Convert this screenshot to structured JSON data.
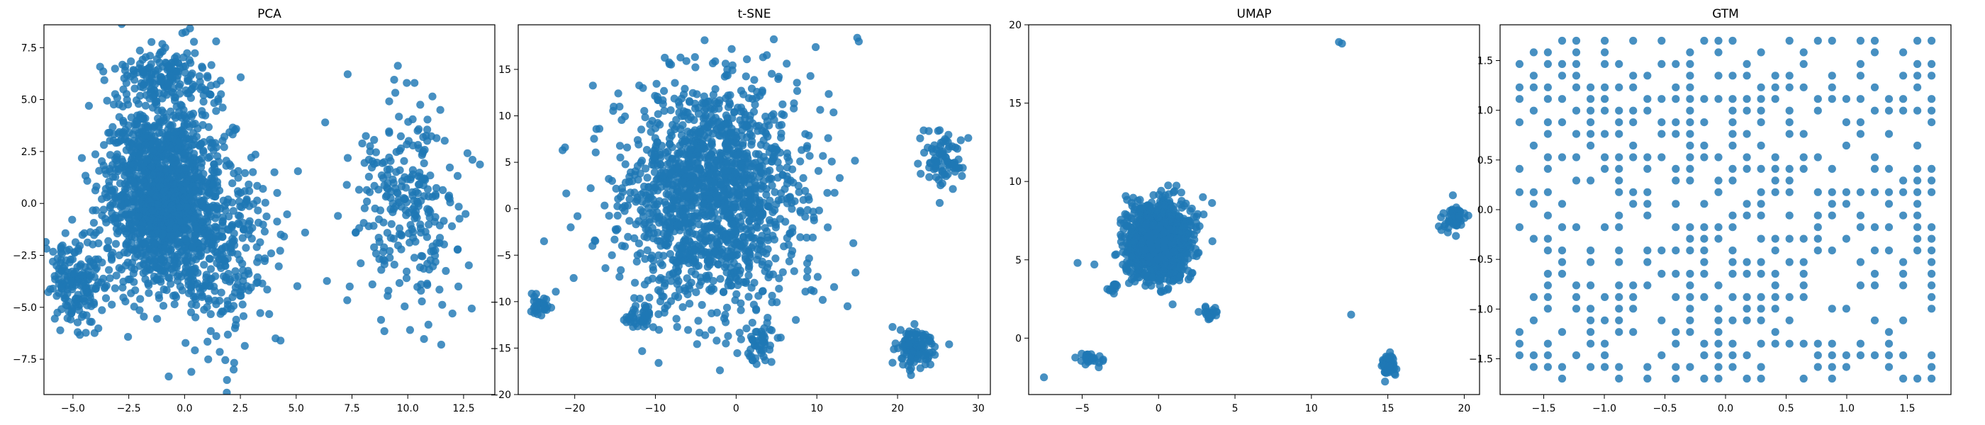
{
  "chart_data": [
    {
      "type": "scatter",
      "title": "PCA",
      "xlim": [
        -6.3,
        13.9
      ],
      "ylim": [
        -9.2,
        8.6
      ],
      "xticks": [
        -5.0,
        -2.5,
        0.0,
        2.5,
        5.0,
        7.5,
        10.0,
        12.5
      ],
      "yticks": [
        -7.5,
        -5.0,
        -2.5,
        0.0,
        2.5,
        5.0,
        7.5
      ],
      "xtick_labels": [
        "−5.0",
        "−2.5",
        "0.0",
        "2.5",
        "5.0",
        "7.5",
        "10.0",
        "12.5"
      ],
      "ytick_labels": [
        "−7.5",
        "−5.0",
        "−2.5",
        "0.0",
        "2.5",
        "5.0",
        "7.5"
      ],
      "color": "#1f77b4",
      "clusters": [
        {
          "cx": -1.0,
          "cy": 0.5,
          "sx": 1.3,
          "sy": 2.3,
          "n": 1400
        },
        {
          "cx": -4.8,
          "cy": -3.8,
          "sx": 0.7,
          "sy": 1.1,
          "n": 180
        },
        {
          "cx": 1.5,
          "cy": -2.5,
          "sx": 1.4,
          "sy": 2.3,
          "n": 300
        },
        {
          "cx": -1.2,
          "cy": 6.0,
          "sx": 1.1,
          "sy": 0.8,
          "n": 140
        },
        {
          "cx": 10.0,
          "cy": 0.0,
          "sx": 1.2,
          "sy": 2.5,
          "n": 260
        }
      ],
      "outliers": [
        [
          -0.1,
          8.2
        ],
        [
          1.9,
          -8.5
        ],
        [
          12.9,
          2.1
        ],
        [
          11.5,
          -6.8
        ],
        [
          12.0,
          -5.3
        ],
        [
          6.3,
          3.9
        ],
        [
          7.4,
          -4.0
        ],
        [
          4.3,
          -6.6
        ],
        [
          -5.9,
          -2.8
        ],
        [
          5.4,
          -1.4
        ],
        [
          2.2,
          -8.0
        ],
        [
          10.3,
          5.8
        ]
      ]
    },
    {
      "type": "scatter",
      "title": "t-SNE",
      "xlim": [
        -27.0,
        31.5
      ],
      "ylim": [
        -20.0,
        19.8
      ],
      "xticks": [
        -20,
        -10,
        0,
        10,
        20,
        30
      ],
      "yticks": [
        -20,
        -15,
        -10,
        -5,
        0,
        5,
        10,
        15
      ],
      "xtick_labels": [
        "−20",
        "−10",
        "0",
        "10",
        "20",
        "30"
      ],
      "ytick_labels": [
        "−20",
        "−15",
        "−10",
        "−5",
        "0",
        "5",
        "10",
        "15"
      ],
      "color": "#1f77b4",
      "clusters": [
        {
          "cx": -3.0,
          "cy": 1.5,
          "sx": 5.5,
          "sy": 6.3,
          "n": 1500
        },
        {
          "cx": -24.0,
          "cy": -10.5,
          "sx": 0.9,
          "sy": 0.8,
          "n": 30
        },
        {
          "cx": 25.5,
          "cy": 5.5,
          "sx": 1.2,
          "sy": 1.6,
          "n": 80
        },
        {
          "cx": 22.0,
          "cy": -15.0,
          "sx": 1.2,
          "sy": 1.1,
          "n": 110
        },
        {
          "cx": 3.0,
          "cy": -14.8,
          "sx": 0.9,
          "sy": 1.0,
          "n": 40
        },
        {
          "cx": -12.0,
          "cy": -11.5,
          "sx": 1.0,
          "sy": 0.7,
          "n": 40
        }
      ],
      "outliers": [
        [
          15.2,
          18.0
        ],
        [
          15.0,
          18.4
        ],
        [
          -21.5,
          6.3
        ],
        [
          -21.2,
          6.6
        ],
        [
          -23.8,
          -3.5
        ],
        [
          13.8,
          -10.5
        ],
        [
          -17.8,
          -4.0
        ],
        [
          -16.2,
          -6.4
        ],
        [
          9.5,
          -3.1
        ],
        [
          -20.5,
          -2.0
        ]
      ]
    },
    {
      "type": "scatter",
      "title": "UMAP",
      "xlim": [
        -8.5,
        21.0
      ],
      "ylim": [
        -3.6,
        20.0
      ],
      "xticks": [
        -5,
        0,
        5,
        10,
        15,
        20
      ],
      "yticks": [
        0,
        5,
        10,
        15,
        20
      ],
      "xtick_labels": [
        "−5",
        "0",
        "5",
        "10",
        "15",
        "20"
      ],
      "ytick_labels": [
        "0",
        "5",
        "10",
        "15",
        "20"
      ],
      "color": "#1f77b4",
      "clusters": [
        {
          "cx": 0.0,
          "cy": 6.2,
          "sx": 1.0,
          "sy": 1.2,
          "n": 1300
        },
        {
          "cx": 15.1,
          "cy": -1.8,
          "sx": 0.18,
          "sy": 0.3,
          "n": 70
        },
        {
          "cx": 19.3,
          "cy": 7.6,
          "sx": 0.35,
          "sy": 0.4,
          "n": 50
        },
        {
          "cx": -4.6,
          "cy": -1.3,
          "sx": 0.4,
          "sy": 0.18,
          "n": 30
        },
        {
          "cx": 3.4,
          "cy": 1.6,
          "sx": 0.25,
          "sy": 0.2,
          "n": 25
        },
        {
          "cx": -3.0,
          "cy": 3.2,
          "sx": 0.2,
          "sy": 0.15,
          "n": 12
        }
      ],
      "outliers": [
        [
          11.8,
          18.9
        ],
        [
          12.0,
          18.8
        ],
        [
          -7.5,
          -2.5
        ],
        [
          12.6,
          1.5
        ],
        [
          -5.3,
          4.8
        ],
        [
          -4.2,
          4.7
        ],
        [
          18.5,
          6.9
        ],
        [
          2.9,
          9.0
        ]
      ]
    },
    {
      "type": "scatter",
      "title": "GTM",
      "xlim": [
        -1.86,
        1.86
      ],
      "ylim": [
        -1.86,
        1.86
      ],
      "xticks": [
        -1.5,
        -1.0,
        -0.5,
        0.0,
        0.5,
        1.0,
        1.5
      ],
      "yticks": [
        -1.5,
        -1.0,
        -0.5,
        0.0,
        0.5,
        1.0,
        1.5
      ],
      "xtick_labels": [
        "−1.5",
        "−1.0",
        "−0.5",
        "0.0",
        "0.5",
        "1.0",
        "1.5"
      ],
      "ytick_labels": [
        "−1.5",
        "−1.0",
        "−0.5",
        "0.0",
        "0.5",
        "1.0",
        "1.5"
      ],
      "color": "#1f77b4",
      "grid": {
        "min": -1.7,
        "max": 1.7,
        "n": 30,
        "fill": 0.48
      },
      "clusters": [],
      "outliers": []
    }
  ]
}
